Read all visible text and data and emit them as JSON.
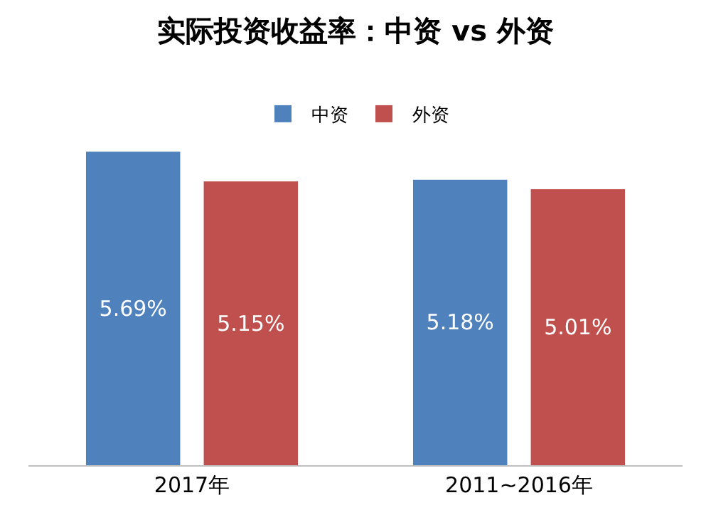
{
  "chart_data": {
    "type": "bar",
    "title": "实际投资收益率：中资 vs 外资",
    "categories": [
      "2017年",
      "2011~2016年"
    ],
    "series": [
      {
        "name": "中资",
        "color": "#4f81bd",
        "values": [
          5.69,
          5.18
        ],
        "value_labels": [
          "5.69%",
          "5.18%"
        ]
      },
      {
        "name": "外资",
        "color": "#c0504d",
        "values": [
          5.15,
          5.01
        ],
        "value_labels": [
          "5.15%",
          "5.01%"
        ]
      }
    ],
    "tick_labels": "x",
    "legend": "top"
  }
}
